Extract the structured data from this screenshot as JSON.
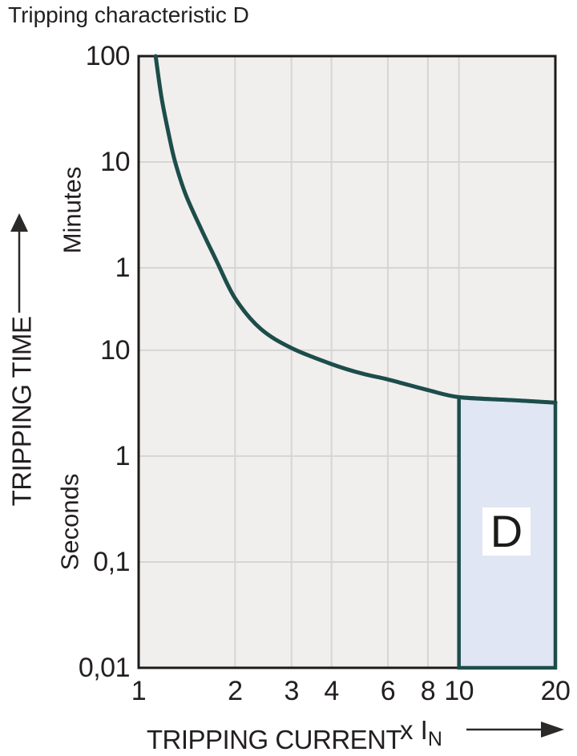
{
  "page": {
    "title": "Tripping characteristic D"
  },
  "chart_data": {
    "type": "line",
    "title": "Tripping characteristic D",
    "x_axis": {
      "label": "TRIPPING CURRENT",
      "multiplier_prefix": "x I",
      "multiplier_subscript": "N",
      "scale": "log",
      "range": [
        1,
        20
      ],
      "ticks": [
        {
          "label": "1",
          "value": 1
        },
        {
          "label": "2",
          "value": 2
        },
        {
          "label": "3",
          "value": 3
        },
        {
          "label": "4",
          "value": 4
        },
        {
          "label": "6",
          "value": 6
        },
        {
          "label": "8",
          "value": 8
        },
        {
          "label": "10",
          "value": 10
        },
        {
          "label": "20",
          "value": 20
        }
      ]
    },
    "y_axis": {
      "label": "TRIPPING TIME",
      "scale": "log",
      "range_seconds": [
        0.01,
        6000
      ],
      "ticks": [
        {
          "label": "100",
          "seconds": 6000
        },
        {
          "label": "10",
          "seconds": 600
        },
        {
          "label": "1",
          "seconds": 60
        },
        {
          "label": "10",
          "seconds": 10
        },
        {
          "label": "1",
          "seconds": 1
        },
        {
          "label": "0,1",
          "seconds": 0.1
        },
        {
          "label": "0,01",
          "seconds": 0.01
        }
      ],
      "unit_labels": [
        "Minutes",
        "Seconds"
      ]
    },
    "series": [
      {
        "name": "tripping-curve",
        "color": "#1d4d4a",
        "points_current_vs_seconds": [
          [
            1.13,
            6000
          ],
          [
            1.18,
            2400
          ],
          [
            1.25,
            1000
          ],
          [
            1.3,
            600
          ],
          [
            1.4,
            300
          ],
          [
            1.55,
            150
          ],
          [
            1.75,
            70
          ],
          [
            2.0,
            31
          ],
          [
            2.4,
            16
          ],
          [
            3.0,
            10.5
          ],
          [
            4.0,
            7.4
          ],
          [
            5.0,
            6.0
          ],
          [
            6.0,
            5.3
          ],
          [
            8.0,
            4.2
          ],
          [
            10,
            3.6
          ],
          [
            14,
            3.4
          ],
          [
            20,
            3.2
          ]
        ]
      }
    ],
    "region": {
      "label": "D",
      "x_range": [
        10,
        20
      ],
      "time_bottom_seconds": 0.01,
      "top_follows_curve": true
    },
    "legend": "none",
    "grid": true
  },
  "colors": {
    "curve": "#1d4d4a",
    "region_fill": "#e0e6f3",
    "region_border": "#1d4d4a",
    "plot_background": "#f0efee",
    "gridline": "#d6d5d4",
    "plot_border": "#1c1b1a",
    "text": "#231f20",
    "arrow": "#2b2a29",
    "page_background": "#ffffff"
  }
}
